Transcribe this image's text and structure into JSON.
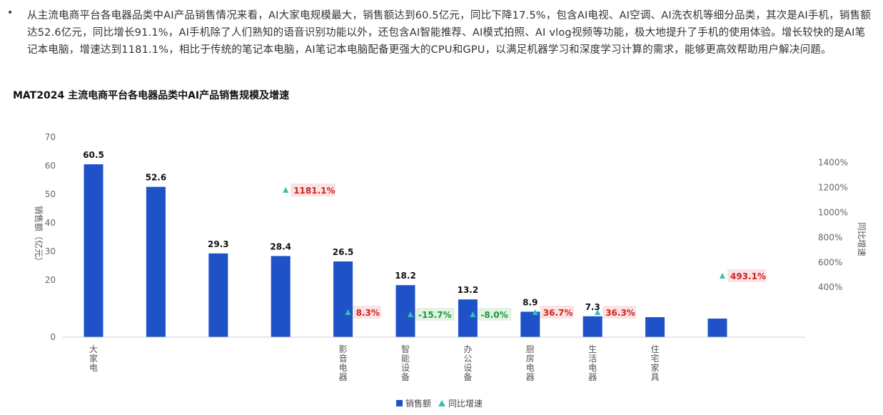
{
  "paragraph": {
    "bullet": "•",
    "text": "从主流电商平台各电器品类中AI产品销售情况来看，AI大家电规模最大，销售额达到60.5亿元，同比下降17.5%，包含AI电视、AI空调、AI洗衣机等细分品类，其次是AI手机，销售额达52.6亿元，同比增长91.1%，AI手机除了人们熟知的语音识别功能以外，还包含AI智能推荐、AI模式拍照、AI vlog视频等功能，极大地提升了手机的使用体验。增长较快的是AI笔记本电脑，增速达到1181.1%，相比于传统的笔记本电脑，AI笔记本电脑配备更强大的CPU和GPU，以满足机器学习和深度学习计算的需求，能够更高效帮助用户解决问题。"
  },
  "chart_data": {
    "type": "bar",
    "title": "MAT2024 主流电商平台各电器品类中AI产品销售规模及增速",
    "categories": [
      "大家电",
      "",
      "",
      "",
      "影音电器",
      "智能设备",
      "办公设备",
      "厨房电器",
      "生活电器",
      "住宅家具",
      "",
      ""
    ],
    "series": [
      {
        "name": "销售额",
        "axis": "left",
        "color": "#1f52c8",
        "values": [
          60.5,
          52.6,
          29.3,
          28.4,
          26.5,
          18.2,
          13.2,
          8.9,
          7.3,
          7.0,
          6.5,
          null
        ],
        "labels": [
          "60.5",
          "52.6",
          "29.3",
          "28.4",
          "26.5",
          "18.2",
          "13.2",
          "8.9",
          "7.3",
          "",
          "",
          ""
        ]
      },
      {
        "name": "同比增速",
        "axis": "right",
        "color": "#35c0b2",
        "values": [
          null,
          null,
          null,
          1181.1,
          8.3,
          -15.7,
          -8.0,
          36.7,
          36.3,
          null,
          493.1,
          null
        ],
        "labels": [
          "",
          "",
          "",
          "1181.1%",
          "8.3%",
          "-15.7%",
          "-8.0%",
          "36.7%",
          "36.3%",
          "",
          "493.1%",
          ""
        ]
      }
    ],
    "ylabel_left": "销售额（亿元）",
    "ylabel_right": "同比增速",
    "ylim_left": [
      0,
      70
    ],
    "yticks_left": [
      "0",
      "20",
      "30",
      "40",
      "50",
      "60",
      "70"
    ],
    "ylim_right": [
      0,
      1400
    ],
    "yticks_right": [
      "400%",
      "600%",
      "800%",
      "1000%",
      "1200%",
      "1400%"
    ],
    "label_colors": {
      "positive_text": "#d42020",
      "positive_bg": "#fbe3e3",
      "negative_text": "#1a9a3a",
      "negative_bg": "#e2f3e6"
    },
    "legend": {
      "position": "bottom",
      "items": [
        "销售额",
        "同比增速"
      ]
    }
  }
}
